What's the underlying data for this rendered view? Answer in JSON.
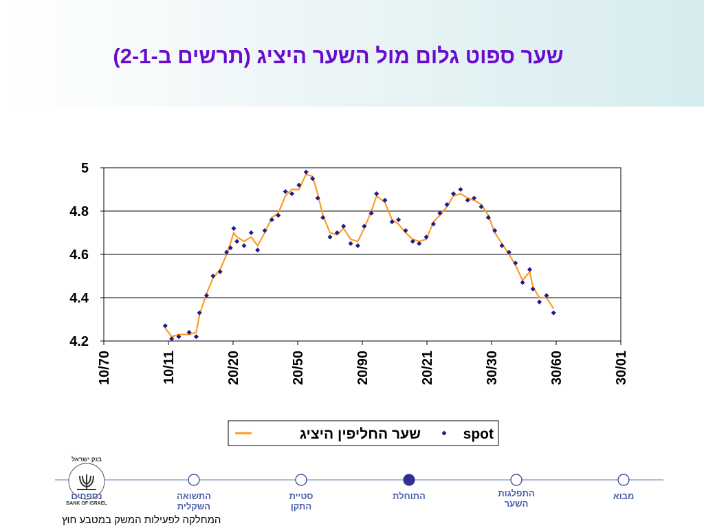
{
  "header": {
    "title": "שער ספוט גלום מול השער היציג (תרשים ב-2-1)"
  },
  "chart_data": {
    "type": "line",
    "x": [
      0.95,
      1.05,
      1.16,
      1.32,
      1.43,
      1.48,
      1.59,
      1.69,
      1.8,
      1.9,
      1.96,
      2.01,
      2.06,
      2.17,
      2.28,
      2.38,
      2.49,
      2.6,
      2.7,
      2.81,
      2.91,
      3.02,
      3.13,
      3.23,
      3.31,
      3.39,
      3.5,
      3.61,
      3.71,
      3.82,
      3.93,
      4.03,
      4.14,
      4.22,
      4.35,
      4.46,
      4.56,
      4.67,
      4.78,
      4.88,
      4.99,
      5.1,
      5.2,
      5.31,
      5.41,
      5.52,
      5.63,
      5.73,
      5.84,
      5.95,
      6.05,
      6.16,
      6.27,
      6.37,
      6.48,
      6.59,
      6.64,
      6.74,
      6.85,
      6.96
    ],
    "series": [
      {
        "name": "שער החליפין היציג",
        "color": "#ff9a1f",
        "style": "line",
        "values": [
          4.26,
          4.22,
          4.23,
          4.23,
          4.24,
          4.32,
          4.42,
          4.49,
          4.53,
          4.6,
          4.65,
          4.7,
          4.68,
          4.66,
          4.68,
          4.64,
          4.7,
          4.77,
          4.79,
          4.87,
          4.9,
          4.9,
          4.97,
          4.96,
          4.88,
          4.78,
          4.7,
          4.69,
          4.72,
          4.67,
          4.66,
          4.72,
          4.8,
          4.87,
          4.84,
          4.76,
          4.74,
          4.7,
          4.67,
          4.66,
          4.67,
          4.75,
          4.78,
          4.82,
          4.87,
          4.88,
          4.86,
          4.85,
          4.83,
          4.78,
          4.7,
          4.65,
          4.6,
          4.55,
          4.48,
          4.52,
          4.45,
          4.4,
          4.4,
          4.35
        ]
      },
      {
        "name": "spot",
        "color": "#1f1a8c",
        "style": "markers",
        "values": [
          4.27,
          4.21,
          4.22,
          4.24,
          4.22,
          4.33,
          4.41,
          4.5,
          4.52,
          4.61,
          4.63,
          4.72,
          4.66,
          4.64,
          4.7,
          4.62,
          4.71,
          4.76,
          4.78,
          4.89,
          4.88,
          4.92,
          4.98,
          4.95,
          4.86,
          4.77,
          4.68,
          4.7,
          4.73,
          4.65,
          4.64,
          4.73,
          4.79,
          4.88,
          4.85,
          4.75,
          4.76,
          4.71,
          4.66,
          4.65,
          4.68,
          4.74,
          4.79,
          4.83,
          4.88,
          4.9,
          4.85,
          4.86,
          4.82,
          4.77,
          4.71,
          4.64,
          4.61,
          4.56,
          4.47,
          4.53,
          4.44,
          4.38,
          4.41,
          4.33
        ]
      }
    ],
    "xlim": [
      0,
      8
    ],
    "xticks": [
      {
        "value": 0,
        "label": "10/70"
      },
      {
        "value": 1,
        "label": "10/11"
      },
      {
        "value": 2,
        "label": "20/20"
      },
      {
        "value": 3,
        "label": "20/50"
      },
      {
        "value": 4,
        "label": "20/90"
      },
      {
        "value": 5,
        "label": "20/21"
      },
      {
        "value": 6,
        "label": "30/30"
      },
      {
        "value": 7,
        "label": "30/60"
      },
      {
        "value": 8,
        "label": "30/01"
      }
    ],
    "ylim": [
      4.2,
      5
    ],
    "yticks": [
      4.2,
      4.4,
      4.6,
      4.8,
      5
    ],
    "grid": true
  },
  "nav": [
    {
      "lines": [
        "מבוא"
      ]
    },
    {
      "lines": [
        "התפלגות",
        "השער"
      ]
    },
    {
      "lines": [
        "התוחלת"
      ]
    },
    {
      "lines": [
        "סטיית",
        "התקן"
      ]
    },
    {
      "lines": [
        "התשואה",
        "השקלית"
      ]
    },
    {
      "lines": [
        "נספחים"
      ]
    }
  ],
  "logo": {
    "hebrew": "בנק ישראל",
    "english": "BANK OF ISRAEL"
  },
  "footer": "המחלקה לפעילות המשק במטבע חוץ"
}
